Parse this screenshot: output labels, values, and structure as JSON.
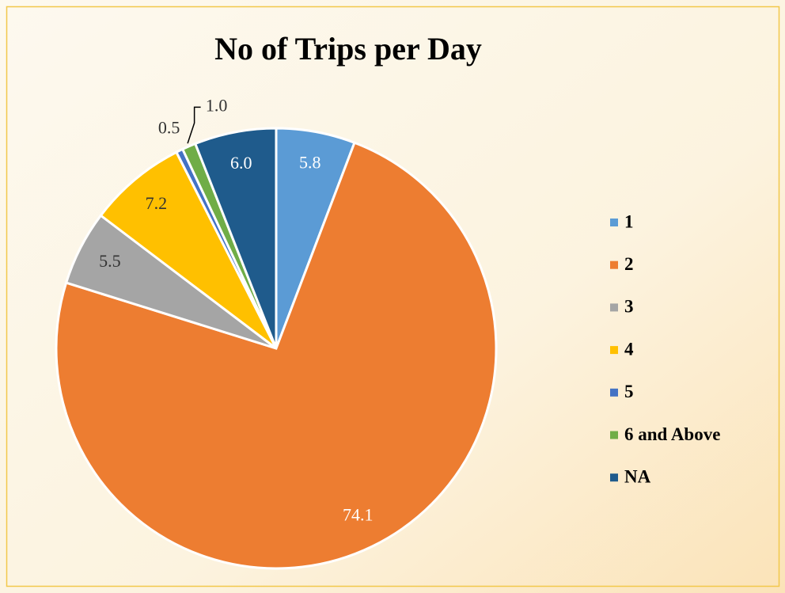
{
  "chart_data": {
    "type": "pie",
    "title": "No of Trips per Day",
    "categories": [
      "1",
      "2",
      "3",
      "4",
      "5",
      "6 and Above",
      "NA"
    ],
    "values": [
      5.8,
      74.1,
      5.5,
      7.2,
      0.5,
      1.0,
      6.0
    ],
    "value_labels": [
      "5.8",
      "74.1",
      "5.5",
      "7.2",
      "0.5",
      "1.0",
      "6.0"
    ],
    "colors": [
      "#5b9bd5",
      "#ed7d31",
      "#a5a5a5",
      "#ffc000",
      "#4472c4",
      "#70ad47",
      "#1f5b8c"
    ],
    "legend": "right"
  }
}
